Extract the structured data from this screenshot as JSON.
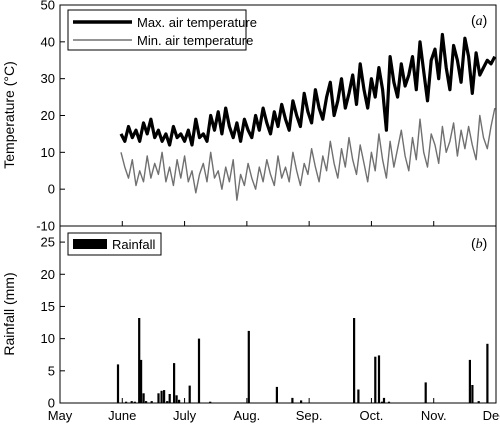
{
  "chart_data": [
    {
      "panel": "(a)",
      "panel_letter": "a",
      "type": "line",
      "ylabel": "Temperature (°C)",
      "ylim": [
        -10,
        50
      ],
      "yticks": [
        -10,
        0,
        10,
        20,
        30,
        40,
        50
      ],
      "xlim": [
        0,
        7
      ],
      "legend_position": "top-left",
      "series": [
        {
          "name": "Max. air temperature",
          "color": "#000000",
          "style": "thick",
          "x": [
            0.98,
            1.04,
            1.1,
            1.16,
            1.22,
            1.28,
            1.34,
            1.4,
            1.46,
            1.52,
            1.58,
            1.64,
            1.7,
            1.76,
            1.82,
            1.88,
            1.94,
            2.0,
            2.06,
            2.12,
            2.18,
            2.24,
            2.3,
            2.36,
            2.42,
            2.48,
            2.54,
            2.6,
            2.66,
            2.72,
            2.78,
            2.84,
            2.9,
            2.96,
            3.02,
            3.08,
            3.14,
            3.2,
            3.26,
            3.32,
            3.38,
            3.44,
            3.5,
            3.56,
            3.62,
            3.68,
            3.74,
            3.8,
            3.86,
            3.92,
            3.98,
            4.04,
            4.1,
            4.16,
            4.22,
            4.28,
            4.34,
            4.4,
            4.46,
            4.52,
            4.58,
            4.64,
            4.7,
            4.76,
            4.82,
            4.88,
            4.94,
            5.0,
            5.06,
            5.12,
            5.18,
            5.24,
            5.3,
            5.36,
            5.42,
            5.48,
            5.54,
            5.6,
            5.66,
            5.72,
            5.78,
            5.84,
            5.9,
            5.96,
            6.02,
            6.08,
            6.14,
            6.2,
            6.26,
            6.32,
            6.38,
            6.44,
            6.5,
            6.56,
            6.62,
            6.68,
            6.74,
            6.8,
            6.86,
            6.92,
            6.98
          ],
          "values": [
            15,
            13,
            17,
            14,
            16,
            13,
            18,
            15,
            19,
            14,
            16,
            13,
            15,
            12,
            17,
            14,
            15,
            13,
            16,
            12,
            19,
            14,
            15,
            13,
            20,
            16,
            21,
            15,
            22,
            17,
            14,
            18,
            13,
            19,
            16,
            14,
            20,
            16,
            22,
            18,
            15,
            21,
            17,
            23,
            19,
            16,
            24,
            20,
            17,
            26,
            21,
            18,
            27,
            22,
            19,
            25,
            29,
            20,
            24,
            30,
            22,
            26,
            31,
            23,
            34,
            27,
            22,
            30,
            25,
            33,
            27,
            16,
            36,
            29,
            25,
            34,
            28,
            31,
            36,
            27,
            40,
            32,
            24,
            35,
            38,
            30,
            42,
            33,
            27,
            39,
            35,
            29,
            41,
            36,
            26,
            37,
            31,
            33,
            35,
            34,
            36
          ]
        },
        {
          "name": "Min. air temperature",
          "color": "#707070",
          "style": "thin",
          "x": [
            0.98,
            1.04,
            1.1,
            1.16,
            1.22,
            1.28,
            1.34,
            1.4,
            1.46,
            1.52,
            1.58,
            1.64,
            1.7,
            1.76,
            1.82,
            1.88,
            1.94,
            2.0,
            2.06,
            2.12,
            2.18,
            2.24,
            2.3,
            2.36,
            2.42,
            2.48,
            2.54,
            2.6,
            2.66,
            2.72,
            2.78,
            2.84,
            2.9,
            2.96,
            3.02,
            3.08,
            3.14,
            3.2,
            3.26,
            3.32,
            3.38,
            3.44,
            3.5,
            3.56,
            3.62,
            3.68,
            3.74,
            3.8,
            3.86,
            3.92,
            3.98,
            4.04,
            4.1,
            4.16,
            4.22,
            4.28,
            4.34,
            4.4,
            4.46,
            4.52,
            4.58,
            4.64,
            4.7,
            4.76,
            4.82,
            4.88,
            4.94,
            5.0,
            5.06,
            5.12,
            5.18,
            5.24,
            5.3,
            5.36,
            5.42,
            5.48,
            5.54,
            5.6,
            5.66,
            5.72,
            5.78,
            5.84,
            5.9,
            5.96,
            6.02,
            6.08,
            6.14,
            6.2,
            6.26,
            6.32,
            6.38,
            6.44,
            6.5,
            6.56,
            6.62,
            6.68,
            6.74,
            6.8,
            6.86,
            6.92,
            6.98
          ],
          "values": [
            10,
            6,
            3,
            8,
            1,
            5,
            2,
            9,
            3,
            7,
            4,
            10,
            2,
            6,
            1,
            8,
            3,
            9,
            2,
            5,
            -1,
            4,
            7,
            2,
            10,
            3,
            5,
            0,
            6,
            2,
            8,
            -3,
            4,
            1,
            7,
            3,
            0,
            6,
            2,
            8,
            4,
            1,
            9,
            3,
            6,
            2,
            10,
            5,
            1,
            7,
            4,
            11,
            6,
            2,
            9,
            5,
            13,
            7,
            3,
            11,
            6,
            14,
            8,
            4,
            12,
            7,
            2,
            10,
            5,
            15,
            8,
            3,
            13,
            6,
            11,
            16,
            9,
            5,
            14,
            8,
            19,
            10,
            6,
            15,
            12,
            7,
            17,
            10,
            13,
            18,
            9,
            16,
            11,
            17,
            12,
            8,
            20,
            14,
            11,
            17,
            22
          ]
        }
      ]
    },
    {
      "panel": "(b)",
      "panel_letter": "b",
      "type": "bar",
      "ylabel": "Rainfall (mm)",
      "ylim": [
        0,
        27.5
      ],
      "yticks": [
        0,
        5,
        10,
        15,
        20,
        25
      ],
      "xlim": [
        0,
        7
      ],
      "xticklabels": [
        "May",
        "June",
        "July",
        "Aug.",
        "Sep.",
        "Oct.",
        "Nov.",
        "Dec."
      ],
      "legend_position": "top-left",
      "series": [
        {
          "name": "Rainfall",
          "color": "#000000",
          "x": [
            0.93,
            1.06,
            1.15,
            1.2,
            1.27,
            1.3,
            1.34,
            1.38,
            1.47,
            1.58,
            1.63,
            1.67,
            1.72,
            1.76,
            1.83,
            1.87,
            1.91,
            2.08,
            2.23,
            2.41,
            3.03,
            3.48,
            3.73,
            3.87,
            4.72,
            4.79,
            5.06,
            5.12,
            5.17,
            5.2,
            5.28,
            5.87,
            6.58,
            6.62,
            6.72,
            6.86
          ],
          "values": [
            6.0,
            0.2,
            0.3,
            0.2,
            13.2,
            6.7,
            1.5,
            0.3,
            0.3,
            1.5,
            1.9,
            2.0,
            0.3,
            1.4,
            6.2,
            1.2,
            0.5,
            2.7,
            10.0,
            0.2,
            11.2,
            2.5,
            0.8,
            0.4,
            13.2,
            2.1,
            7.2,
            7.4,
            0.2,
            0.8,
            0.2,
            3.2,
            6.7,
            2.8,
            0.3,
            9.2
          ]
        }
      ]
    }
  ]
}
